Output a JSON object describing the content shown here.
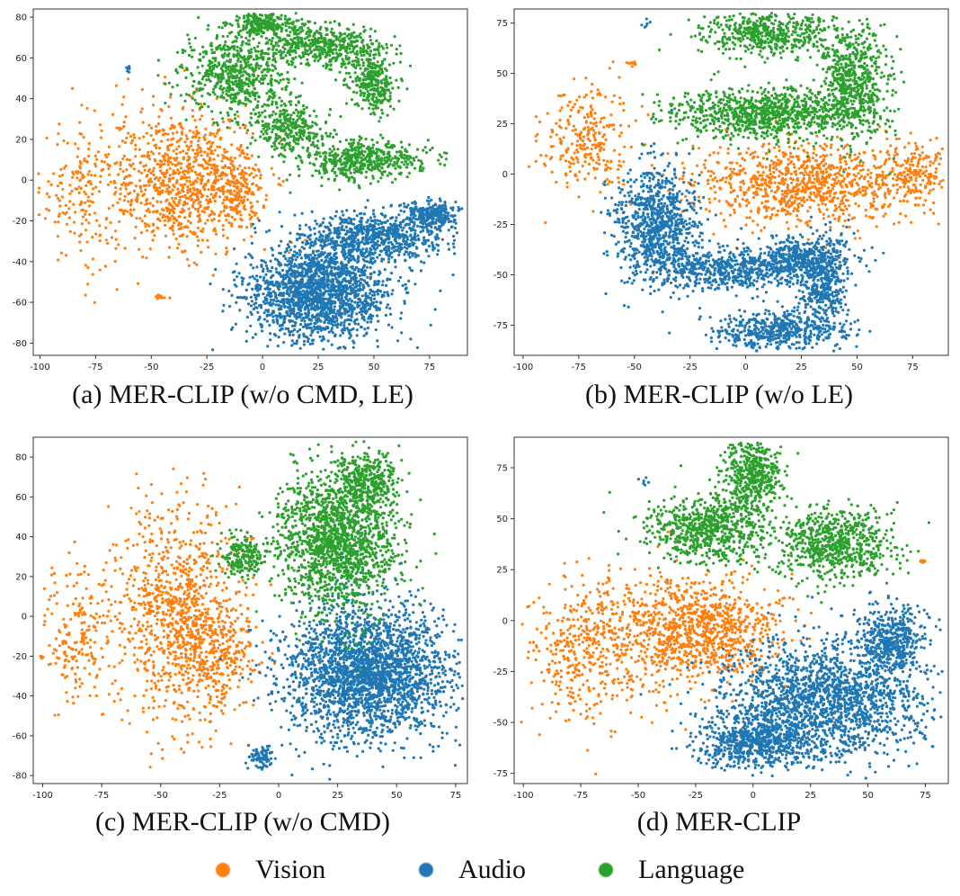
{
  "legend": {
    "items": [
      {
        "label": "Vision",
        "color": "#ff7f0e"
      },
      {
        "label": "Audio",
        "color": "#1f77b4"
      },
      {
        "label": "Language",
        "color": "#2ca02c"
      }
    ]
  },
  "chart_data": [
    {
      "type": "scatter",
      "title": "(a) MER-CLIP (w/o CMD, LE)",
      "xlim": [
        -103,
        92
      ],
      "ylim": [
        -86,
        84
      ],
      "xticks": [
        -100,
        -75,
        -50,
        -25,
        0,
        25,
        50,
        75
      ],
      "yticks": [
        -80,
        -60,
        -40,
        -20,
        0,
        20,
        40,
        60,
        80
      ],
      "series": [
        {
          "name": "Vision",
          "color": "#ff7f0e",
          "clusters": [
            {
              "cx": -80,
              "cy": -5,
              "sx": 10,
              "sy": 18,
              "n": 200
            },
            {
              "cx": -35,
              "cy": 0,
              "sx": 16,
              "sy": 17,
              "n": 900
            },
            {
              "cx": -10,
              "cy": -5,
              "sx": 5,
              "sy": 8,
              "n": 150
            },
            {
              "cx": -46,
              "cy": -57,
              "sx": 1.2,
              "sy": 0.6,
              "n": 10
            }
          ]
        },
        {
          "name": "Audio",
          "color": "#1f77b4",
          "clusters": [
            {
              "cx": 25,
              "cy": -55,
              "sx": 16,
              "sy": 12,
              "n": 1800
            },
            {
              "cx": 50,
              "cy": -28,
              "sx": 16,
              "sy": 6,
              "n": 700
            },
            {
              "cx": 75,
              "cy": -17,
              "sx": 6,
              "sy": 3,
              "n": 250
            },
            {
              "cx": -60,
              "cy": 54,
              "sx": 1,
              "sy": 1,
              "n": 6
            }
          ]
        },
        {
          "name": "Language",
          "color": "#2ca02c",
          "clusters": [
            {
              "cx": -12,
              "cy": 52,
              "sx": 12,
              "sy": 10,
              "n": 600
            },
            {
              "cx": 0,
              "cy": 77,
              "sx": 8,
              "sy": 3,
              "n": 250
            },
            {
              "cx": 25,
              "cy": 66,
              "sx": 14,
              "sy": 5,
              "n": 500
            },
            {
              "cx": 50,
              "cy": 48,
              "sx": 5,
              "sy": 7,
              "n": 300
            },
            {
              "cx": 12,
              "cy": 25,
              "sx": 8,
              "sy": 6,
              "n": 300
            },
            {
              "cx": 45,
              "cy": 10,
              "sx": 13,
              "sy": 5,
              "n": 500
            }
          ]
        }
      ]
    },
    {
      "type": "scatter",
      "title": "(b) MER-CLIP (w/o LE)",
      "xlim": [
        -104,
        91
      ],
      "ylim": [
        -90,
        82
      ],
      "xticks": [
        -100,
        -75,
        -50,
        -25,
        0,
        25,
        50,
        75
      ],
      "yticks": [
        -75,
        -50,
        -25,
        0,
        25,
        50,
        75
      ],
      "series": [
        {
          "name": "Vision",
          "color": "#ff7f0e",
          "clusters": [
            {
              "cx": -72,
              "cy": 18,
              "sx": 10,
              "sy": 14,
              "n": 260
            },
            {
              "cx": 25,
              "cy": -5,
              "sx": 25,
              "sy": 10,
              "n": 900
            },
            {
              "cx": 75,
              "cy": 0,
              "sx": 8,
              "sy": 8,
              "n": 200
            },
            {
              "cx": -52,
              "cy": 55,
              "sx": 1.2,
              "sy": 0.6,
              "n": 10
            }
          ]
        },
        {
          "name": "Audio",
          "color": "#1f77b4",
          "clusters": [
            {
              "cx": -40,
              "cy": -25,
              "sx": 9,
              "sy": 14,
              "n": 900
            },
            {
              "cx": -5,
              "cy": -47,
              "sx": 18,
              "sy": 5,
              "n": 600
            },
            {
              "cx": 28,
              "cy": -42,
              "sx": 10,
              "sy": 6,
              "n": 400
            },
            {
              "cx": 35,
              "cy": -58,
              "sx": 5,
              "sy": 9,
              "n": 300
            },
            {
              "cx": 15,
              "cy": -78,
              "sx": 15,
              "sy": 5,
              "n": 500
            },
            {
              "cx": -45,
              "cy": 74,
              "sx": 1,
              "sy": 1,
              "n": 6
            }
          ]
        },
        {
          "name": "Language",
          "color": "#2ca02c",
          "clusters": [
            {
              "cx": 10,
              "cy": 70,
              "sx": 15,
              "sy": 6,
              "n": 500
            },
            {
              "cx": 10,
              "cy": 30,
              "sx": 22,
              "sy": 6,
              "n": 900
            },
            {
              "cx": 48,
              "cy": 45,
              "sx": 8,
              "sy": 14,
              "n": 600
            }
          ]
        }
      ]
    },
    {
      "type": "scatter",
      "title": "(c) MER-CLIP (w/o CMD)",
      "xlim": [
        -104,
        80
      ],
      "ylim": [
        -84,
        90
      ],
      "xticks": [
        -100,
        -75,
        -50,
        -25,
        0,
        25,
        50,
        75
      ],
      "yticks": [
        -80,
        -60,
        -40,
        -20,
        0,
        20,
        40,
        60,
        80
      ],
      "series": [
        {
          "name": "Vision",
          "color": "#ff7f0e",
          "clusters": [
            {
              "cx": -85,
              "cy": -10,
              "sx": 8,
              "sy": 18,
              "n": 200
            },
            {
              "cx": -42,
              "cy": 0,
              "sx": 14,
              "sy": 28,
              "n": 1000
            },
            {
              "cx": -25,
              "cy": -20,
              "sx": 8,
              "sy": 12,
              "n": 200
            }
          ]
        },
        {
          "name": "Audio",
          "color": "#1f77b4",
          "clusters": [
            {
              "cx": 38,
              "cy": -28,
              "sx": 17,
              "sy": 17,
              "n": 2400
            },
            {
              "cx": -7,
              "cy": -70,
              "sx": 3,
              "sy": 3,
              "n": 80
            }
          ]
        },
        {
          "name": "Language",
          "color": "#2ca02c",
          "clusters": [
            {
              "cx": -15,
              "cy": 30,
              "sx": 5,
              "sy": 5,
              "n": 200
            },
            {
              "cx": 25,
              "cy": 38,
              "sx": 13,
              "sy": 18,
              "n": 1600
            },
            {
              "cx": 38,
              "cy": 68,
              "sx": 6,
              "sy": 7,
              "n": 300
            }
          ]
        }
      ]
    },
    {
      "type": "scatter",
      "title": "(d) MER-CLIP",
      "xlim": [
        -104,
        85
      ],
      "ylim": [
        -80,
        90
      ],
      "xticks": [
        -100,
        -75,
        -50,
        -25,
        0,
        25,
        50,
        75
      ],
      "yticks": [
        -75,
        -50,
        -25,
        0,
        25,
        50,
        75
      ],
      "series": [
        {
          "name": "Vision",
          "color": "#ff7f0e",
          "clusters": [
            {
              "cx": -70,
              "cy": -15,
              "sx": 14,
              "sy": 18,
              "n": 450
            },
            {
              "cx": -25,
              "cy": -5,
              "sx": 18,
              "sy": 13,
              "n": 1000
            },
            {
              "cx": 74,
              "cy": 29,
              "sx": 1,
              "sy": 0.6,
              "n": 8
            }
          ]
        },
        {
          "name": "Audio",
          "color": "#1f77b4",
          "clusters": [
            {
              "cx": 30,
              "cy": -40,
              "sx": 22,
              "sy": 14,
              "n": 1800
            },
            {
              "cx": 60,
              "cy": -10,
              "sx": 8,
              "sy": 9,
              "n": 500
            },
            {
              "cx": 0,
              "cy": -60,
              "sx": 12,
              "sy": 6,
              "n": 600
            },
            {
              "cx": -48,
              "cy": 69,
              "sx": 1,
              "sy": 1,
              "n": 6
            }
          ]
        },
        {
          "name": "Language",
          "color": "#2ca02c",
          "clusters": [
            {
              "cx": -20,
              "cy": 45,
              "sx": 13,
              "sy": 8,
              "n": 700
            },
            {
              "cx": 0,
              "cy": 72,
              "sx": 6,
              "sy": 10,
              "n": 500
            },
            {
              "cx": 35,
              "cy": 38,
              "sx": 12,
              "sy": 9,
              "n": 700
            }
          ]
        }
      ]
    }
  ]
}
